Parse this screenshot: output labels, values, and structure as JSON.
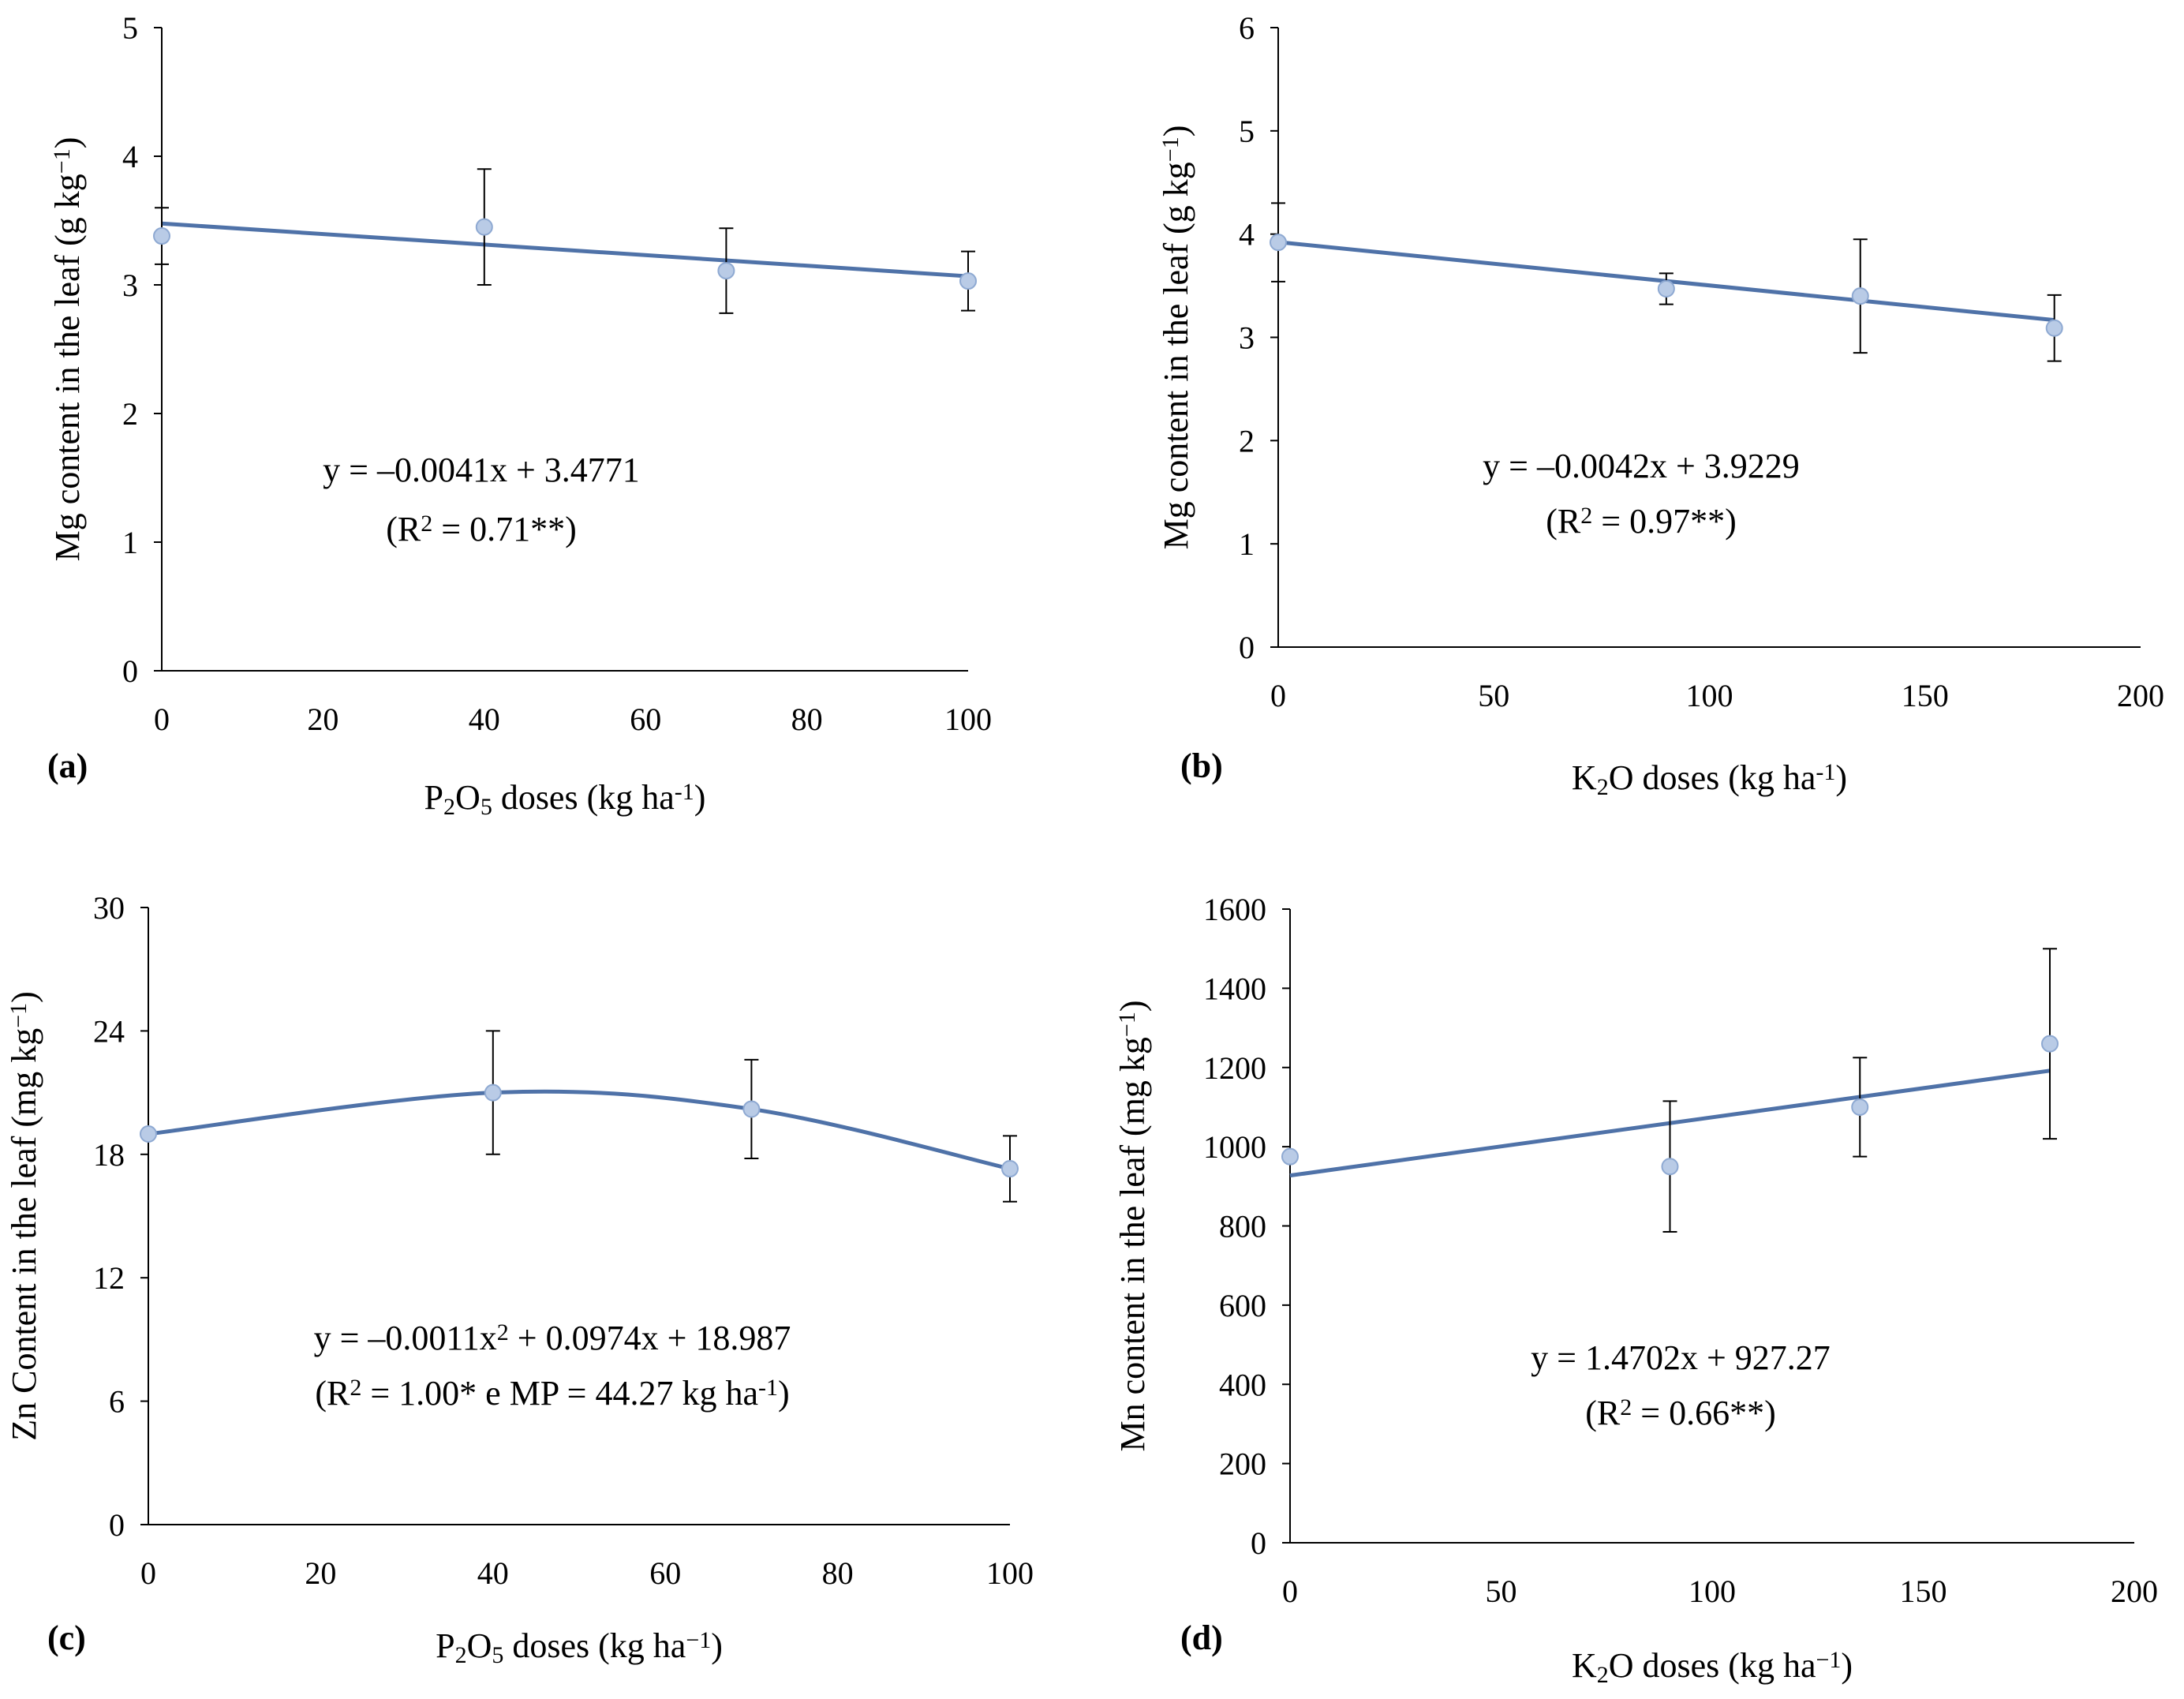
{
  "colors": {
    "line": "#4f72a8",
    "marker": "#b9cbe6",
    "marker_edge": "#8ea9d2",
    "axis": "#000000"
  },
  "chart_data": [
    {
      "id": "a",
      "type": "scatter",
      "panel_label": "(a)",
      "ylabel": "Mg content in the leaf (g kg",
      "ylabel_sup": "−1",
      "ylabel_end": ")",
      "xlabel_parts": [
        "P",
        "2",
        "O",
        "5",
        " doses  (kg ha",
        "-1",
        ")"
      ],
      "xlim": [
        0,
        100
      ],
      "ylim": [
        0,
        5
      ],
      "xticks": [
        0,
        20,
        40,
        60,
        80,
        100
      ],
      "yticks": [
        0,
        1,
        2,
        3,
        4,
        5
      ],
      "x": [
        0,
        40,
        70,
        100
      ],
      "y": [
        3.38,
        3.45,
        3.11,
        3.03
      ],
      "err": [
        0.22,
        0.45,
        0.33,
        0.23
      ],
      "fit": {
        "kind": "linear",
        "coef": [
          3.4771,
          -0.0041
        ]
      },
      "equation": "y = –0.0041x + 3.4771",
      "r2_parts": [
        "(R",
        "2",
        " = 0.71**)"
      ]
    },
    {
      "id": "b",
      "type": "scatter",
      "panel_label": "(b)",
      "ylabel": "Mg content in the leaf (g kg",
      "ylabel_sup": "−1",
      "ylabel_end": ")",
      "xlabel_parts": [
        "K",
        "2",
        "O doses  (kg ha",
        "-1",
        ")"
      ],
      "xlim": [
        0,
        200
      ],
      "ylim": [
        0,
        6
      ],
      "xticks": [
        0,
        50,
        100,
        150,
        200
      ],
      "yticks": [
        0,
        1,
        2,
        3,
        4,
        5,
        6
      ],
      "x": [
        0,
        90,
        135,
        180
      ],
      "y": [
        3.92,
        3.47,
        3.4,
        3.09
      ],
      "err": [
        0.38,
        0.15,
        0.55,
        0.32
      ],
      "fit": {
        "kind": "linear",
        "coef": [
          3.9229,
          -0.0042
        ]
      },
      "equation": "y = –0.0042x + 3.9229",
      "r2_parts": [
        "(R",
        "2",
        " = 0.97**)"
      ]
    },
    {
      "id": "c",
      "type": "scatter",
      "panel_label": "(c)",
      "ylabel": "Zn Content in the leaf (mg kg",
      "ylabel_sup": "−1",
      "ylabel_end": ")",
      "xlabel_parts": [
        "P",
        "2",
        "O",
        "5",
        " doses  (kg ha",
        "−1",
        ")"
      ],
      "xlim": [
        0,
        100
      ],
      "ylim": [
        0,
        30
      ],
      "xticks": [
        0,
        20,
        40,
        60,
        80,
        100
      ],
      "yticks": [
        0,
        6,
        12,
        18,
        24,
        30
      ],
      "x": [
        0,
        40,
        70,
        100
      ],
      "y": [
        18.99,
        21.0,
        20.2,
        17.3
      ],
      "err": [
        0,
        3.0,
        2.4,
        1.6
      ],
      "fit": {
        "kind": "smooth"
      },
      "equation_parts": [
        "y = –0.0011x",
        "2",
        " + 0.0974x + 18.987"
      ],
      "r2_parts": [
        "(R",
        "2",
        " = 1.00* e MP = 44.27 kg ha",
        "-1",
        ")"
      ]
    },
    {
      "id": "d",
      "type": "scatter",
      "panel_label": "(d)",
      "ylabel": "Mn content in the leaf (mg kg",
      "ylabel_sup": "−1",
      "ylabel_end": ")",
      "xlabel_parts": [
        "K",
        "2",
        "O doses  (kg ha",
        "−1",
        ")"
      ],
      "xlim": [
        0,
        200
      ],
      "ylim": [
        0,
        1600
      ],
      "xticks": [
        0,
        50,
        100,
        150,
        200
      ],
      "yticks": [
        0,
        200,
        400,
        600,
        800,
        1000,
        1200,
        1400,
        1600
      ],
      "x": [
        0,
        90,
        135,
        180
      ],
      "y": [
        975,
        950,
        1100,
        1260
      ],
      "err": [
        0,
        165,
        125,
        240
      ],
      "fit": {
        "kind": "linear",
        "coef": [
          927.27,
          1.4702
        ]
      },
      "equation": "y = 1.4702x + 927.27",
      "r2_parts": [
        "(R",
        "2",
        " = 0.66**)"
      ]
    }
  ]
}
